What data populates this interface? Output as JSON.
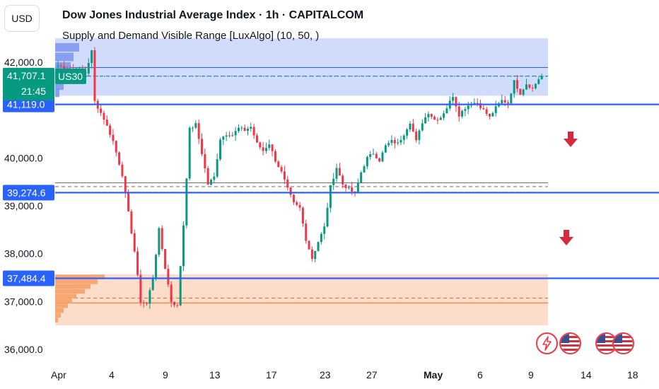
{
  "header": {
    "currency": "USD",
    "title": "Dow Jones Industrial Average Index · 1h · CAPITALCOM",
    "subtitle": "Supply and Demand Visible Range [LuxAlgo] (10, 50, )"
  },
  "colors": {
    "level_line": "#2962ff",
    "up_candle": "#089981",
    "down_candle": "#f23645",
    "supply_zone": "#c9d5fb",
    "demand_zone": "#fdd9c4",
    "arrow": "#d52a3d",
    "price_badge": "#089981"
  },
  "chart_data": {
    "type": "candlestick",
    "symbol": "US30",
    "y_tick_labels": [
      "42,000.0",
      "40,000.0",
      "39,000.0",
      "38,000.0",
      "37,000.0",
      "36,000.0"
    ],
    "y_ticks": [
      42000,
      40000,
      39000,
      38000,
      37000,
      36000
    ],
    "x_tick_labels": [
      "Apr",
      "4",
      "9",
      "13",
      "17",
      "23",
      "27",
      "May",
      "6",
      "9",
      "14",
      "18"
    ],
    "ylim": [
      35800,
      42600
    ],
    "last_price": {
      "value": 41707.1,
      "label": "41,707.1",
      "countdown": "21:45"
    },
    "horizontal_levels": [
      {
        "value": 41119.0,
        "label": "41,119.0"
      },
      {
        "value": 39274.6,
        "label": "39,274.6"
      },
      {
        "value": 37484.4,
        "label": "37,484.4"
      }
    ],
    "zones": [
      {
        "kind": "supply",
        "top": 42500,
        "bottom": 41300,
        "mid": 41710,
        "inner_top": 41890
      },
      {
        "kind": "demand",
        "top": 37570,
        "bottom": 36500,
        "mid": 37070,
        "inner_bottom": 36970
      },
      {
        "kind": "equilibrium",
        "top": 39480,
        "mid": 39400
      }
    ],
    "close_path": [
      [
        0,
        41930
      ],
      [
        4,
        41850
      ],
      [
        9,
        41770
      ],
      [
        11,
        42230
      ],
      [
        12,
        41180
      ],
      [
        15,
        40820
      ],
      [
        18,
        40350
      ],
      [
        21,
        39650
      ],
      [
        23,
        38850
      ],
      [
        25,
        38050
      ],
      [
        27,
        37000
      ],
      [
        29,
        36950
      ],
      [
        31,
        37500
      ],
      [
        33,
        38500
      ],
      [
        35,
        37700
      ],
      [
        37,
        37000
      ],
      [
        39,
        36900
      ],
      [
        41,
        38600
      ],
      [
        43,
        40600
      ],
      [
        45,
        40700
      ],
      [
        47,
        40100
      ],
      [
        49,
        39450
      ],
      [
        51,
        39600
      ],
      [
        53,
        40400
      ],
      [
        55,
        40500
      ],
      [
        57,
        40480
      ],
      [
        59,
        40620
      ],
      [
        61,
        40580
      ],
      [
        63,
        40650
      ],
      [
        65,
        40300
      ],
      [
        67,
        40150
      ],
      [
        69,
        40300
      ],
      [
        71,
        39950
      ],
      [
        73,
        39700
      ],
      [
        75,
        39350
      ],
      [
        77,
        39050
      ],
      [
        79,
        38950
      ],
      [
        81,
        38300
      ],
      [
        83,
        37900
      ],
      [
        85,
        38250
      ],
      [
        87,
        38550
      ],
      [
        89,
        39400
      ],
      [
        91,
        39800
      ],
      [
        93,
        39450
      ],
      [
        95,
        39350
      ],
      [
        97,
        39250
      ],
      [
        99,
        39700
      ],
      [
        101,
        40000
      ],
      [
        103,
        40100
      ],
      [
        105,
        39950
      ],
      [
        107,
        40250
      ],
      [
        109,
        40350
      ],
      [
        111,
        40300
      ],
      [
        113,
        40500
      ],
      [
        115,
        40750
      ],
      [
        117,
        40350
      ],
      [
        119,
        40750
      ],
      [
        121,
        40950
      ],
      [
        123,
        40800
      ],
      [
        125,
        40850
      ],
      [
        127,
        41050
      ],
      [
        129,
        41300
      ],
      [
        131,
        40900
      ],
      [
        133,
        41050
      ],
      [
        135,
        41150
      ],
      [
        137,
        41150
      ],
      [
        139,
        41000
      ],
      [
        141,
        40850
      ],
      [
        143,
        41050
      ],
      [
        145,
        41200
      ],
      [
        147,
        41150
      ],
      [
        149,
        41600
      ],
      [
        151,
        41350
      ],
      [
        153,
        41550
      ],
      [
        155,
        41450
      ],
      [
        157,
        41650
      ],
      [
        158,
        41707
      ]
    ]
  }
}
